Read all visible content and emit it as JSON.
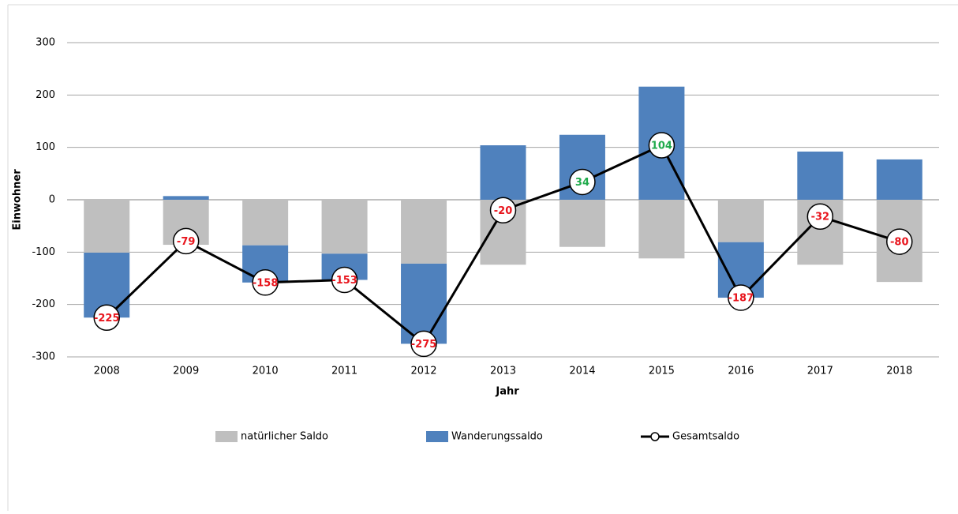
{
  "chart_data": {
    "type": "bar_line",
    "y_label": "Einwohner",
    "x_label": "Jahr",
    "categories": [
      "2008",
      "2009",
      "2010",
      "2011",
      "2012",
      "2013",
      "2014",
      "2015",
      "2016",
      "2017",
      "2018"
    ],
    "series": [
      {
        "name": "natürlicher Saldo",
        "color": "#bfbfbf",
        "type": "bar",
        "values": [
          -101,
          -86,
          -87,
          -103,
          -122,
          -124,
          -90,
          -112,
          -81,
          -124,
          -157
        ]
      },
      {
        "name": "Wanderungssaldo",
        "color": "#4f81bd",
        "type": "bar",
        "values": [
          -124,
          7,
          -71,
          -50,
          -153,
          104,
          124,
          216,
          -106,
          92,
          77
        ]
      },
      {
        "name": "Gesamtsaldo",
        "color": "#000000",
        "type": "line",
        "values": [
          -225,
          -79,
          -158,
          -153,
          -275,
          -20,
          34,
          104,
          -187,
          -32,
          -80
        ]
      }
    ],
    "label_colors": {
      "negative": "#e8141c",
      "positive": "#1faa4b"
    },
    "ylim": [
      -300,
      300
    ],
    "yticks": [
      -300,
      -200,
      -100,
      0,
      100,
      200,
      300
    ],
    "grid": true
  }
}
